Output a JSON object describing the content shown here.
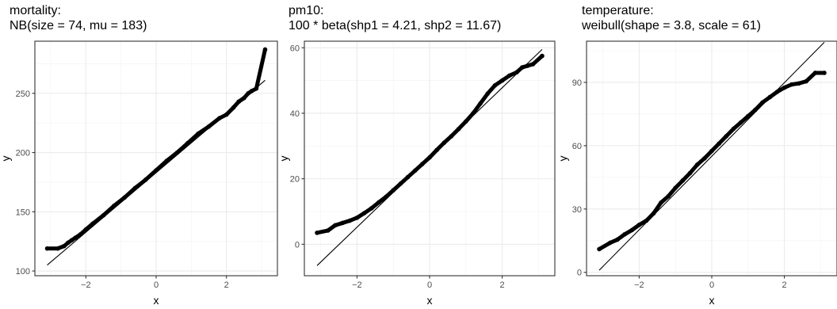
{
  "chart_data": [
    {
      "type": "scatter",
      "title_line1": "mortality:",
      "title_line2": "NB(size = 74, mu = 183)",
      "xlabel": "x",
      "ylabel": "y",
      "xlim": [
        -3.45,
        3.45
      ],
      "ylim": [
        96,
        294
      ],
      "xticks": [
        -2,
        0,
        2
      ],
      "xtick_labels": [
        "−2",
        "0",
        "2"
      ],
      "yticks": [
        100,
        150,
        200,
        250
      ],
      "ytick_labels": [
        "100",
        "150",
        "200",
        "250"
      ],
      "grid": true,
      "reference_line": {
        "x": [
          -3.1,
          3.1
        ],
        "y": [
          105,
          261
        ]
      },
      "points": {
        "x": [
          -3.1,
          -2.8,
          -2.62,
          -2.5,
          -2.4,
          -2.3,
          -2.15,
          -2.0,
          -1.8,
          -1.5,
          -1.2,
          -0.9,
          -0.6,
          -0.3,
          0.0,
          0.3,
          0.6,
          0.9,
          1.2,
          1.5,
          1.8,
          2.0,
          2.2,
          2.35,
          2.5,
          2.62,
          2.72,
          2.85,
          3.1
        ],
        "y": [
          119,
          119,
          121,
          124,
          126,
          128,
          131,
          135,
          140,
          147,
          155,
          162,
          170,
          177,
          185,
          193,
          200,
          208,
          216,
          222,
          229,
          232,
          238,
          243,
          246,
          250,
          252,
          254,
          287
        ]
      }
    },
    {
      "type": "scatter",
      "title_line1": "pm10:",
      "title_line2": "100 * beta(shp1 = 4.21, shp2 = 11.67)",
      "xlabel": "x",
      "ylabel": "y",
      "xlim": [
        -3.45,
        3.45
      ],
      "ylim": [
        -9.6,
        62
      ],
      "xticks": [
        -2,
        0,
        2
      ],
      "xtick_labels": [
        "−2",
        "0",
        "2"
      ],
      "yticks": [
        0,
        20,
        40,
        60
      ],
      "ytick_labels": [
        "0",
        "20",
        "40",
        "60"
      ],
      "grid": true,
      "reference_line": {
        "x": [
          -3.1,
          3.1
        ],
        "y": [
          -6.5,
          59.5
        ]
      },
      "points": {
        "x": [
          -3.1,
          -2.8,
          -2.6,
          -2.4,
          -2.2,
          -2.0,
          -1.8,
          -1.6,
          -1.4,
          -1.2,
          -1.0,
          -0.8,
          -0.6,
          -0.4,
          -0.2,
          0.0,
          0.2,
          0.4,
          0.6,
          0.8,
          1.0,
          1.2,
          1.4,
          1.6,
          1.8,
          2.0,
          2.2,
          2.4,
          2.55,
          2.7,
          2.85,
          3.1
        ],
        "y": [
          3.5,
          4.2,
          5.8,
          6.5,
          7.2,
          8.1,
          9.5,
          11,
          12.8,
          14.5,
          16.5,
          18.5,
          20.5,
          22.5,
          24.5,
          26.5,
          28.8,
          31,
          33,
          35.2,
          37.5,
          40,
          43,
          46,
          48.5,
          50,
          51.5,
          52.5,
          54,
          54.5,
          55,
          57.5
        ]
      }
    },
    {
      "type": "scatter",
      "title_line1": "temperature:",
      "title_line2": "weibull(shape = 3.8, scale = 61)",
      "xlabel": "x",
      "ylabel": "y",
      "xlim": [
        -3.45,
        3.45
      ],
      "ylim": [
        -1.6,
        109.5
      ],
      "xticks": [
        -2,
        0,
        2
      ],
      "xtick_labels": [
        "−2",
        "0",
        "2"
      ],
      "yticks": [
        0,
        30,
        60,
        90
      ],
      "ytick_labels": [
        "0",
        "30",
        "60",
        "90"
      ],
      "grid": true,
      "reference_line": {
        "x": [
          -3.1,
          3.1
        ],
        "y": [
          1,
          109
        ]
      },
      "points": {
        "x": [
          -3.1,
          -2.8,
          -2.6,
          -2.4,
          -2.2,
          -2.0,
          -1.8,
          -1.6,
          -1.4,
          -1.2,
          -1.0,
          -0.8,
          -0.6,
          -0.4,
          -0.2,
          0.0,
          0.2,
          0.4,
          0.6,
          0.8,
          1.0,
          1.2,
          1.4,
          1.6,
          1.8,
          2.0,
          2.2,
          2.4,
          2.6,
          2.85,
          3.1
        ],
        "y": [
          11,
          14,
          15.5,
          18,
          20,
          22.5,
          24.5,
          28,
          33,
          36,
          40,
          43.5,
          47,
          51,
          54,
          57.5,
          61,
          64.5,
          68,
          71,
          74,
          77,
          80.5,
          83,
          85.5,
          87.5,
          89,
          89.5,
          90.5,
          94.5,
          94.5
        ]
      }
    }
  ]
}
